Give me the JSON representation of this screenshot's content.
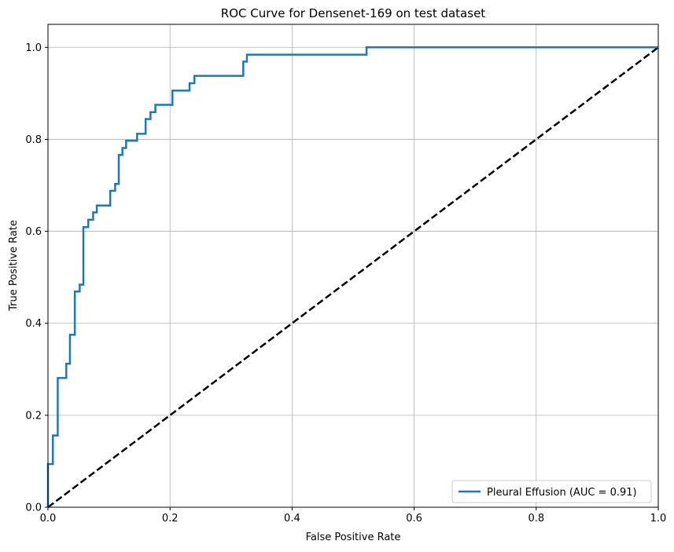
{
  "chart_data": {
    "type": "line",
    "title": "ROC Curve for Densenet-169 on test dataset",
    "xlabel": "False Positive Rate",
    "ylabel": "True Positive Rate",
    "xlim": [
      0,
      1
    ],
    "ylim": [
      0,
      1.05
    ],
    "xticks": [
      0.0,
      0.2,
      0.4,
      0.6,
      0.8,
      1.0
    ],
    "yticks": [
      0.0,
      0.2,
      0.4,
      0.6,
      0.8,
      1.0
    ],
    "xtick_labels": [
      "0.0",
      "0.2",
      "0.4",
      "0.6",
      "0.8",
      "1.0"
    ],
    "ytick_labels": [
      "0.0",
      "0.2",
      "0.4",
      "0.6",
      "0.8",
      "1.0"
    ],
    "grid": true,
    "legend_position": "bottom-right",
    "series": [
      {
        "name": "Pleural Effusion (AUC = 0.91)",
        "color": "#1f77b4",
        "style": "solid",
        "x": [
          0,
          0,
          0.008,
          0.008,
          0.016,
          0.016,
          0.03,
          0.03,
          0.036,
          0.036,
          0.044,
          0.044,
          0.052,
          0.052,
          0.058,
          0.058,
          0.066,
          0.066,
          0.074,
          0.074,
          0.08,
          0.08,
          0.102,
          0.102,
          0.11,
          0.11,
          0.116,
          0.116,
          0.122,
          0.122,
          0.128,
          0.128,
          0.146,
          0.146,
          0.16,
          0.16,
          0.168,
          0.168,
          0.176,
          0.176,
          0.204,
          0.204,
          0.232,
          0.232,
          0.24,
          0.24,
          0.32,
          0.32,
          0.326,
          0.326,
          0.522,
          0.522,
          1.0
        ],
        "y": [
          0,
          0.094,
          0.094,
          0.156,
          0.156,
          0.281,
          0.281,
          0.312,
          0.312,
          0.375,
          0.375,
          0.469,
          0.469,
          0.484,
          0.484,
          0.609,
          0.609,
          0.625,
          0.625,
          0.641,
          0.641,
          0.656,
          0.656,
          0.688,
          0.688,
          0.703,
          0.703,
          0.766,
          0.766,
          0.781,
          0.781,
          0.797,
          0.797,
          0.812,
          0.812,
          0.844,
          0.844,
          0.859,
          0.859,
          0.875,
          0.875,
          0.906,
          0.906,
          0.922,
          0.922,
          0.938,
          0.938,
          0.969,
          0.969,
          0.984,
          0.984,
          1.0,
          1.0
        ]
      },
      {
        "name": "",
        "color": "#000000",
        "style": "dashed",
        "x": [
          0,
          1
        ],
        "y": [
          0,
          1
        ]
      }
    ]
  }
}
